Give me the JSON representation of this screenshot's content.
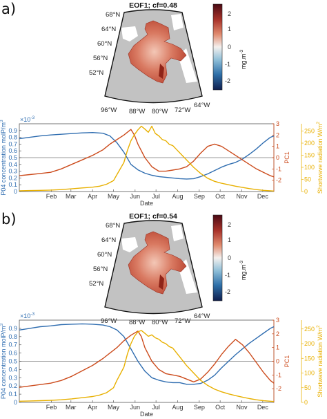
{
  "panels": [
    {
      "letter": "a)",
      "map_title": "EOF1; cf=0.48",
      "colorbar": {
        "ticks": [
          "2",
          "1",
          "0",
          "-1",
          "-2"
        ],
        "unit": "mg.m",
        "unit_sup": "-3"
      },
      "lat_labels": [
        "68°N",
        "64°N",
        "60°N",
        "56°N",
        "52°N"
      ],
      "lon_labels": [
        "96°W",
        "88°W",
        "80°W",
        "72°W",
        "64°W"
      ]
    },
    {
      "letter": "b)",
      "map_title": "EOF1; cf=0.54",
      "colorbar": {
        "ticks": [
          "2",
          "1",
          "0",
          "-1",
          "-2"
        ],
        "unit": "mg.m",
        "unit_sup": "-3"
      },
      "lat_labels": [
        "68°N",
        "64°N",
        "60°N",
        "56°N",
        "52°N"
      ],
      "lon_labels": [
        "96°W",
        "88°W",
        "80°W",
        "72°W",
        "64°W"
      ]
    }
  ],
  "colors": {
    "po4": "#2f6db0",
    "pc1": "#cc4b1c",
    "swr": "#e8b000",
    "map_land": "#ffffff",
    "map_bg": "#c2c2c2"
  },
  "chart_data": [
    {
      "type": "line",
      "title": "",
      "xlabel": "Date",
      "x_ticks": [
        "Feb",
        "Mar",
        "Apr",
        "May",
        "Jun",
        "Jul",
        "Aug",
        "Sep",
        "Oct",
        "Nov",
        "Dec"
      ],
      "xlim": [
        0,
        365
      ],
      "left_axis": {
        "label": "P04 concentration molP/m",
        "label_sup": "3",
        "exponent": "×10",
        "exponent_sup": "-3",
        "ylim": [
          0,
          1.0
        ],
        "ticks": [
          "0.9",
          "0.8",
          "0.7",
          "0.6",
          "0.5",
          "0.4",
          "0.3",
          "0.2",
          "0.1",
          "0"
        ]
      },
      "right_axis_1": {
        "label": "PC1",
        "ylim": [
          -3,
          3
        ],
        "ticks": [
          "3",
          "2",
          "1",
          "0",
          "-1",
          "-2"
        ]
      },
      "right_axis_2": {
        "label": "Shortwave radiation W/m",
        "label_sup": "2",
        "ylim": [
          0,
          280
        ],
        "ticks": [
          "250",
          "200",
          "150",
          "100",
          "50",
          "0"
        ]
      },
      "series": [
        {
          "axis": "left",
          "x": [
            0,
            15,
            30,
            45,
            60,
            75,
            90,
            105,
            120,
            130,
            140,
            150,
            160,
            170,
            180,
            190,
            200,
            210,
            220,
            230,
            240,
            250,
            260,
            270,
            280,
            290,
            300,
            310,
            320,
            330,
            340,
            350,
            360,
            365
          ],
          "values": [
            0.78,
            0.8,
            0.82,
            0.835,
            0.845,
            0.855,
            0.865,
            0.87,
            0.86,
            0.82,
            0.72,
            0.58,
            0.4,
            0.32,
            0.27,
            0.24,
            0.22,
            0.21,
            0.2,
            0.19,
            0.185,
            0.19,
            0.22,
            0.26,
            0.31,
            0.36,
            0.4,
            0.43,
            0.48,
            0.55,
            0.63,
            0.72,
            0.8,
            0.82
          ]
        },
        {
          "axis": "right1",
          "x": [
            0,
            15,
            30,
            45,
            60,
            75,
            90,
            105,
            120,
            130,
            140,
            150,
            160,
            165,
            170,
            180,
            190,
            200,
            210,
            220,
            230,
            240,
            250,
            260,
            270,
            280,
            290,
            300,
            310,
            320,
            330,
            340,
            350,
            360,
            365
          ],
          "values": [
            -1.6,
            -1.5,
            -1.4,
            -1.3,
            -1.0,
            -0.6,
            -0.2,
            0.2,
            0.7,
            1.2,
            1.6,
            2.0,
            2.5,
            2.0,
            1.2,
            0.0,
            -0.8,
            -1.2,
            -1.2,
            -1.1,
            -1.0,
            -0.8,
            -0.3,
            0.4,
            1.0,
            1.2,
            1.0,
            0.6,
            0.2,
            -0.2,
            -0.6,
            -1.0,
            -1.3,
            -1.6,
            -1.7
          ]
        },
        {
          "axis": "right2",
          "x": [
            0,
            15,
            30,
            45,
            60,
            75,
            90,
            105,
            115,
            125,
            135,
            140,
            150,
            155,
            160,
            165,
            170,
            175,
            180,
            185,
            190,
            195,
            200,
            205,
            210,
            215,
            220,
            225,
            230,
            240,
            250,
            260,
            270,
            280,
            290,
            300,
            310,
            320,
            330,
            340,
            350,
            360,
            365
          ],
          "values": [
            3,
            4,
            5,
            6,
            8,
            11,
            15,
            18,
            22,
            30,
            45,
            70,
            120,
            170,
            210,
            235,
            255,
            270,
            258,
            245,
            270,
            240,
            230,
            215,
            210,
            195,
            190,
            175,
            160,
            130,
            100,
            75,
            55,
            42,
            34,
            28,
            22,
            17,
            12,
            8,
            5,
            3,
            2
          ]
        }
      ]
    },
    {
      "type": "line",
      "title": "",
      "xlabel": "Date",
      "x_ticks": [
        "Feb",
        "Mar",
        "Apr",
        "May",
        "Jun",
        "Jul",
        "Aug",
        "Sep",
        "Oct",
        "Nov",
        "Dec"
      ],
      "xlim": [
        0,
        365
      ],
      "left_axis": {
        "label": "P04 concentration molP/m",
        "label_sup": "3",
        "exponent": "×10",
        "exponent_sup": "-3",
        "ylim": [
          0,
          1.0
        ],
        "ticks": [
          "0.9",
          "0.8",
          "0.7",
          "0.6",
          "0.5",
          "0.4",
          "0.3",
          "0.2",
          "0.1",
          "0"
        ]
      },
      "right_axis_1": {
        "label": "PC1",
        "ylim": [
          -3,
          3
        ],
        "ticks": [
          "3",
          "2",
          "1",
          "0",
          "-1",
          "-2"
        ]
      },
      "right_axis_2": {
        "label": "Shortwave radiation W/m",
        "label_sup": "2",
        "ylim": [
          0,
          280
        ],
        "ticks": [
          "250",
          "200",
          "150",
          "100",
          "50",
          "0"
        ]
      },
      "series": [
        {
          "axis": "left",
          "x": [
            0,
            15,
            30,
            45,
            60,
            75,
            90,
            105,
            120,
            130,
            140,
            150,
            160,
            170,
            180,
            190,
            200,
            210,
            220,
            230,
            240,
            250,
            260,
            270,
            280,
            290,
            300,
            310,
            320,
            330,
            340,
            350,
            360,
            365
          ],
          "values": [
            0.88,
            0.9,
            0.92,
            0.93,
            0.945,
            0.95,
            0.955,
            0.95,
            0.94,
            0.92,
            0.88,
            0.8,
            0.65,
            0.5,
            0.38,
            0.3,
            0.27,
            0.25,
            0.24,
            0.24,
            0.22,
            0.22,
            0.23,
            0.27,
            0.33,
            0.42,
            0.5,
            0.58,
            0.65,
            0.72,
            0.78,
            0.84,
            0.9,
            0.92
          ]
        },
        {
          "axis": "right1",
          "x": [
            0,
            15,
            30,
            45,
            60,
            75,
            90,
            105,
            120,
            130,
            140,
            150,
            160,
            170,
            175,
            180,
            190,
            200,
            210,
            220,
            230,
            240,
            250,
            260,
            270,
            280,
            290,
            300,
            310,
            320,
            330,
            340,
            350,
            360,
            365
          ],
          "values": [
            -1.9,
            -1.8,
            -1.7,
            -1.6,
            -1.4,
            -1.1,
            -0.7,
            -0.3,
            0.2,
            0.6,
            1.0,
            1.5,
            1.9,
            2.2,
            1.8,
            1.0,
            0.0,
            -0.6,
            -0.9,
            -1.0,
            -1.1,
            -1.3,
            -1.5,
            -1.3,
            -0.8,
            -0.2,
            0.5,
            1.1,
            1.6,
            1.2,
            0.6,
            -0.1,
            -0.8,
            -1.4,
            -1.6
          ]
        },
        {
          "axis": "right2",
          "x": [
            0,
            15,
            30,
            45,
            60,
            75,
            90,
            105,
            115,
            125,
            135,
            140,
            150,
            155,
            160,
            165,
            170,
            175,
            180,
            185,
            190,
            195,
            200,
            205,
            210,
            215,
            220,
            225,
            230,
            240,
            250,
            260,
            270,
            280,
            290,
            300,
            310,
            320,
            330,
            340,
            350,
            360,
            365
          ],
          "values": [
            4,
            5,
            6,
            7,
            9,
            12,
            16,
            20,
            25,
            33,
            50,
            75,
            120,
            165,
            200,
            225,
            240,
            245,
            235,
            225,
            230,
            220,
            215,
            205,
            200,
            190,
            185,
            170,
            155,
            125,
            100,
            75,
            58,
            45,
            36,
            29,
            23,
            18,
            13,
            9,
            6,
            4,
            3
          ]
        }
      ]
    }
  ]
}
